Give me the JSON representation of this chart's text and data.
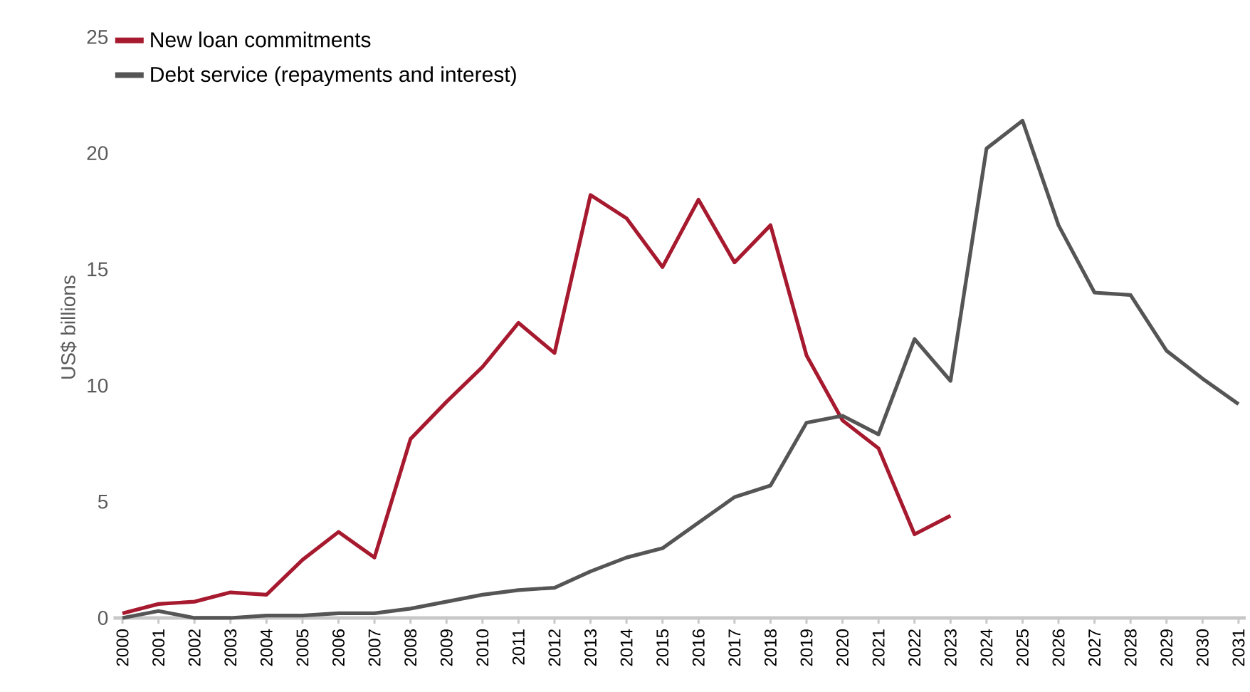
{
  "chart_data": {
    "type": "line",
    "ylabel": "US$ billions",
    "categories": [
      "2000",
      "2001",
      "2002",
      "2003",
      "2004",
      "2005",
      "2006",
      "2007",
      "2008",
      "2009",
      "2010",
      "2011",
      "2012",
      "2013",
      "2014",
      "2015",
      "2016",
      "2017",
      "2018",
      "2019",
      "2020",
      "2021",
      "2022",
      "2023",
      "2024",
      "2025",
      "2026",
      "2027",
      "2028",
      "2029",
      "2030",
      "2031"
    ],
    "series": [
      {
        "name": "New loan commitments",
        "color": "#a6192e",
        "values": [
          0.2,
          0.6,
          0.7,
          1.1,
          1.0,
          2.5,
          3.7,
          2.6,
          7.7,
          9.3,
          10.8,
          12.7,
          11.4,
          18.2,
          17.2,
          15.1,
          18.0,
          15.3,
          16.9,
          11.3,
          8.5,
          7.3,
          3.6,
          4.4,
          null,
          null,
          null,
          null,
          null,
          null,
          null,
          null
        ]
      },
      {
        "name": "Debt service (repayments and interest)",
        "color": "#555555",
        "values": [
          0.0,
          0.3,
          0.0,
          0.0,
          0.1,
          0.1,
          0.2,
          0.2,
          0.4,
          0.7,
          1.0,
          1.2,
          1.3,
          2.0,
          2.6,
          3.0,
          4.1,
          5.2,
          5.7,
          8.4,
          8.7,
          7.9,
          12.0,
          10.2,
          20.2,
          21.4,
          16.9,
          14.0,
          13.9,
          11.5,
          10.3,
          9.2
        ]
      }
    ],
    "ylim": [
      0,
      25
    ],
    "yticks": [
      0,
      5,
      10,
      15,
      20,
      25
    ],
    "grid": false,
    "legend": "top left",
    "marker": "none",
    "line_style": "solid"
  }
}
